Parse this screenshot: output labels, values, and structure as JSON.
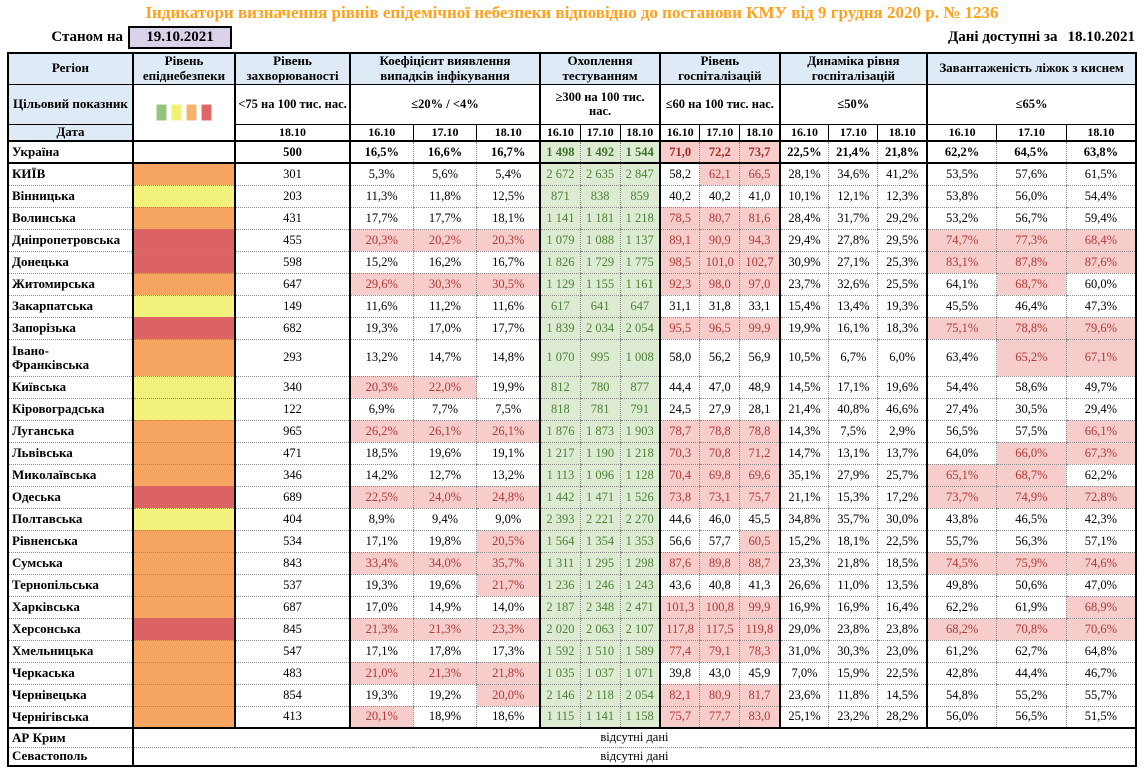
{
  "title": "Індикатори визначення рівнів епідемічної небезпеки відповідно до постанови КМУ від 9 грудня 2020 р. № 1236",
  "meta": {
    "as_of_label": "Станом на",
    "as_of_date": "19.10.2021",
    "available_label": "Дані доступні за",
    "available_date": "18.10.2021"
  },
  "colors": {
    "title_orange": "#FFA11C",
    "header_blue": "#DEEAF6",
    "date_box_lavender": "#D9D2E9",
    "test_green_bg": "#DCEBD2",
    "test_green_text": "#4F8038",
    "exceed_pink_bg": "#F6CDCB",
    "exceed_red_text": "#AF3A36"
  },
  "table": {
    "corner": {
      "region": "Регіон",
      "target": "Цільовий показник",
      "date": "Дата"
    },
    "legend_colors": [
      "#93C47D",
      "#F2F272",
      "#F6B26B",
      "#E06666"
    ],
    "risk_colors": {
      "orange": "#F5A55F",
      "yellow": "#F2F17B",
      "red": "#DC6363"
    },
    "no_data_text": "відсутні дані",
    "groups": [
      {
        "label": "Рівень епіднебезпеки"
      },
      {
        "label": "Рівень захворюваності",
        "target": "<75 на 100 тис. нас.",
        "dates": [
          "18.10"
        ]
      },
      {
        "label": "Коефіцієнт виявлення випадків інфікування",
        "target": "≤20% / <4%",
        "dates": [
          "16.10",
          "17.10",
          "18.10"
        ]
      },
      {
        "label": "Охоплення тестуванням",
        "target": "≥300 на 100 тис. нас.",
        "dates": [
          "16.10",
          "17.10",
          "18.10"
        ]
      },
      {
        "label": "Рівень госпіталізацій",
        "target": "≤60 на 100 тис. нас.",
        "dates": [
          "16.10",
          "17.10",
          "18.10"
        ]
      },
      {
        "label": "Динаміка рівня госпіталізацій",
        "target": "≤50%",
        "dates": [
          "16.10",
          "17.10",
          "18.10"
        ]
      },
      {
        "label": "Завантаженість ліжок з киснем",
        "target": "≤65%",
        "dates": [
          "16.10",
          "17.10",
          "18.10"
        ]
      }
    ],
    "rows": [
      {
        "region": "Україна",
        "risk": "none",
        "bold": true,
        "incidence": "500",
        "coef": [
          "16,5%",
          "16,6%",
          "16,7%"
        ],
        "test": [
          "1 498",
          "1 492",
          "1 544"
        ],
        "hosp": [
          "71,0",
          "72,2",
          "73,7"
        ],
        "dyn": [
          "22,5%",
          "21,4%",
          "21,8%"
        ],
        "bed": [
          "62,2%",
          "64,5%",
          "63,8%"
        ]
      },
      {
        "region": "КИЇВ",
        "risk": "orange",
        "incidence": "301",
        "coef": [
          "5,3%",
          "5,6%",
          "5,4%"
        ],
        "test": [
          "2 672",
          "2 635",
          "2 847"
        ],
        "hosp": [
          "58,2",
          "62,1",
          "66,5"
        ],
        "dyn": [
          "28,1%",
          "34,6%",
          "41,2%"
        ],
        "bed": [
          "53,5%",
          "57,6%",
          "61,5%"
        ]
      },
      {
        "region": "Вінницька",
        "risk": "yellow",
        "incidence": "203",
        "coef": [
          "11,3%",
          "11,8%",
          "12,5%"
        ],
        "test": [
          "871",
          "838",
          "859"
        ],
        "hosp": [
          "40,2",
          "40,2",
          "41,0"
        ],
        "dyn": [
          "10,1%",
          "12,1%",
          "12,3%"
        ],
        "bed": [
          "53,8%",
          "56,0%",
          "54,4%"
        ]
      },
      {
        "region": "Волинська",
        "risk": "orange",
        "incidence": "431",
        "coef": [
          "17,7%",
          "17,7%",
          "18,1%"
        ],
        "test": [
          "1 141",
          "1 181",
          "1 218"
        ],
        "hosp": [
          "78,5",
          "80,7",
          "81,6"
        ],
        "dyn": [
          "28,4%",
          "31,7%",
          "29,2%"
        ],
        "bed": [
          "53,2%",
          "56,7%",
          "59,4%"
        ]
      },
      {
        "region": "Дніпропетровська",
        "risk": "red",
        "incidence": "455",
        "coef": [
          "20,3%",
          "20,2%",
          "20,3%"
        ],
        "test": [
          "1 079",
          "1 088",
          "1 137"
        ],
        "hosp": [
          "89,1",
          "90,9",
          "94,3"
        ],
        "dyn": [
          "29,4%",
          "27,8%",
          "29,5%"
        ],
        "bed": [
          "74,7%",
          "77,3%",
          "68,4%"
        ]
      },
      {
        "region": "Донецька",
        "risk": "red",
        "incidence": "598",
        "coef": [
          "15,2%",
          "16,2%",
          "16,7%"
        ],
        "test": [
          "1 826",
          "1 729",
          "1 775"
        ],
        "hosp": [
          "98,5",
          "101,0",
          "102,7"
        ],
        "dyn": [
          "30,9%",
          "27,1%",
          "25,3%"
        ],
        "bed": [
          "83,1%",
          "87,8%",
          "87,6%"
        ]
      },
      {
        "region": "Житомирська",
        "risk": "orange",
        "incidence": "647",
        "coef": [
          "29,6%",
          "30,3%",
          "30,5%"
        ],
        "test": [
          "1 129",
          "1 155",
          "1 161"
        ],
        "hosp": [
          "92,3",
          "98,0",
          "97,0"
        ],
        "dyn": [
          "23,7%",
          "32,6%",
          "25,5%"
        ],
        "bed": [
          "64,1%",
          "68,7%",
          "60,0%"
        ]
      },
      {
        "region": "Закарпатська",
        "risk": "yellow",
        "incidence": "149",
        "coef": [
          "11,6%",
          "11,2%",
          "11,6%"
        ],
        "test": [
          "617",
          "641",
          "647"
        ],
        "hosp": [
          "31,1",
          "31,8",
          "33,1"
        ],
        "dyn": [
          "15,4%",
          "13,4%",
          "19,3%"
        ],
        "bed": [
          "45,5%",
          "46,4%",
          "47,3%"
        ]
      },
      {
        "region": "Запорізька",
        "risk": "red",
        "incidence": "682",
        "coef": [
          "19,3%",
          "17,0%",
          "17,7%"
        ],
        "test": [
          "1 839",
          "2 034",
          "2 054"
        ],
        "hosp": [
          "95,5",
          "96,5",
          "99,9"
        ],
        "dyn": [
          "19,9%",
          "16,1%",
          "18,3%"
        ],
        "bed": [
          "75,1%",
          "78,8%",
          "79,6%"
        ]
      },
      {
        "region": "Івано-Франківська",
        "risk": "orange",
        "tall": true,
        "incidence": "293",
        "coef": [
          "13,2%",
          "14,7%",
          "14,8%"
        ],
        "test": [
          "1 070",
          "995",
          "1 008"
        ],
        "hosp": [
          "58,0",
          "56,2",
          "56,9"
        ],
        "dyn": [
          "10,5%",
          "6,7%",
          "6,0%"
        ],
        "bed": [
          "63,4%",
          "65,2%",
          "67,1%"
        ]
      },
      {
        "region": "Київська",
        "risk": "yellow",
        "incidence": "340",
        "coef": [
          "20,3%",
          "22,0%",
          "19,9%"
        ],
        "test": [
          "812",
          "780",
          "877"
        ],
        "hosp": [
          "44,4",
          "47,0",
          "48,9"
        ],
        "dyn": [
          "14,5%",
          "17,1%",
          "19,6%"
        ],
        "bed": [
          "54,4%",
          "58,6%",
          "49,7%"
        ]
      },
      {
        "region": "Кіровоградська",
        "risk": "yellow",
        "incidence": "122",
        "coef": [
          "6,9%",
          "7,7%",
          "7,5%"
        ],
        "test": [
          "818",
          "781",
          "791"
        ],
        "hosp": [
          "24,5",
          "27,9",
          "28,1"
        ],
        "dyn": [
          "21,4%",
          "40,8%",
          "46,6%"
        ],
        "bed": [
          "27,4%",
          "30,5%",
          "29,4%"
        ]
      },
      {
        "region": "Луганська",
        "risk": "orange",
        "incidence": "965",
        "coef": [
          "26,2%",
          "26,1%",
          "26,1%"
        ],
        "test": [
          "1 876",
          "1 873",
          "1 903"
        ],
        "hosp": [
          "78,7",
          "78,8",
          "78,8"
        ],
        "dyn": [
          "14,3%",
          "7,5%",
          "2,9%"
        ],
        "bed": [
          "56,5%",
          "57,5%",
          "66,1%"
        ]
      },
      {
        "region": "Львівська",
        "risk": "orange",
        "incidence": "471",
        "coef": [
          "18,5%",
          "19,6%",
          "19,1%"
        ],
        "test": [
          "1 217",
          "1 190",
          "1 218"
        ],
        "hosp": [
          "70,3",
          "70,8",
          "71,2"
        ],
        "dyn": [
          "14,7%",
          "13,1%",
          "13,7%"
        ],
        "bed": [
          "64,0%",
          "66,0%",
          "67,3%"
        ]
      },
      {
        "region": "Миколаївська",
        "risk": "orange",
        "incidence": "346",
        "coef": [
          "14,2%",
          "12,7%",
          "13,2%"
        ],
        "test": [
          "1 113",
          "1 096",
          "1 128"
        ],
        "hosp": [
          "70,4",
          "69,8",
          "69,6"
        ],
        "dyn": [
          "35,1%",
          "27,9%",
          "25,7%"
        ],
        "bed": [
          "65,1%",
          "68,7%",
          "62,2%"
        ]
      },
      {
        "region": "Одеська",
        "risk": "red",
        "incidence": "689",
        "coef": [
          "22,5%",
          "24,0%",
          "24,8%"
        ],
        "test": [
          "1 442",
          "1 471",
          "1 526"
        ],
        "hosp": [
          "73,8",
          "73,1",
          "75,7"
        ],
        "dyn": [
          "21,1%",
          "15,3%",
          "17,2%"
        ],
        "bed": [
          "73,7%",
          "74,9%",
          "72,8%"
        ]
      },
      {
        "region": "Полтавська",
        "risk": "yellow",
        "incidence": "404",
        "coef": [
          "8,9%",
          "9,4%",
          "9,0%"
        ],
        "test": [
          "2 393",
          "2 221",
          "2 270"
        ],
        "hosp": [
          "44,6",
          "46,0",
          "45,5"
        ],
        "dyn": [
          "34,8%",
          "35,7%",
          "30,0%"
        ],
        "bed": [
          "43,8%",
          "46,5%",
          "42,3%"
        ]
      },
      {
        "region": "Рівненська",
        "risk": "orange",
        "incidence": "534",
        "coef": [
          "17,1%",
          "19,8%",
          "20,5%"
        ],
        "test": [
          "1 564",
          "1 354",
          "1 353"
        ],
        "hosp": [
          "56,6",
          "57,7",
          "60,5"
        ],
        "dyn": [
          "15,2%",
          "18,1%",
          "22,5%"
        ],
        "bed": [
          "55,7%",
          "56,3%",
          "57,1%"
        ]
      },
      {
        "region": "Сумська",
        "risk": "orange",
        "incidence": "843",
        "coef": [
          "33,4%",
          "34,0%",
          "35,7%"
        ],
        "test": [
          "1 311",
          "1 295",
          "1 298"
        ],
        "hosp": [
          "87,6",
          "89,8",
          "88,7"
        ],
        "dyn": [
          "23,3%",
          "21,8%",
          "18,5%"
        ],
        "bed": [
          "74,5%",
          "75,9%",
          "74,6%"
        ]
      },
      {
        "region": "Тернопільська",
        "risk": "orange",
        "incidence": "537",
        "coef": [
          "19,3%",
          "19,6%",
          "21,7%"
        ],
        "test": [
          "1 236",
          "1 246",
          "1 243"
        ],
        "hosp": [
          "43,6",
          "40,8",
          "41,3"
        ],
        "dyn": [
          "26,6%",
          "11,0%",
          "13,5%"
        ],
        "bed": [
          "49,8%",
          "50,6%",
          "47,0%"
        ]
      },
      {
        "region": "Харківська",
        "risk": "orange",
        "incidence": "687",
        "coef": [
          "17,0%",
          "14,9%",
          "14,0%"
        ],
        "test": [
          "2 187",
          "2 348",
          "2 471"
        ],
        "hosp": [
          "101,3",
          "100,8",
          "99,9"
        ],
        "dyn": [
          "16,9%",
          "16,9%",
          "16,4%"
        ],
        "bed": [
          "62,2%",
          "61,9%",
          "68,9%"
        ]
      },
      {
        "region": "Херсонська",
        "risk": "red",
        "incidence": "845",
        "coef": [
          "21,3%",
          "21,3%",
          "23,3%"
        ],
        "test": [
          "2 020",
          "2 063",
          "2 107"
        ],
        "hosp": [
          "117,8",
          "117,5",
          "119,8"
        ],
        "dyn": [
          "29,0%",
          "23,8%",
          "23,8%"
        ],
        "bed": [
          "68,2%",
          "70,8%",
          "70,6%"
        ]
      },
      {
        "region": "Хмельницька",
        "risk": "orange",
        "incidence": "547",
        "coef": [
          "17,1%",
          "17,8%",
          "17,3%"
        ],
        "test": [
          "1 592",
          "1 510",
          "1 589"
        ],
        "hosp": [
          "77,4",
          "79,1",
          "78,3"
        ],
        "dyn": [
          "31,0%",
          "30,3%",
          "23,0%"
        ],
        "bed": [
          "61,2%",
          "62,7%",
          "64,8%"
        ]
      },
      {
        "region": "Черкаська",
        "risk": "orange",
        "incidence": "483",
        "coef": [
          "21,0%",
          "21,3%",
          "21,8%"
        ],
        "test": [
          "1 035",
          "1 037",
          "1 071"
        ],
        "hosp": [
          "39,8",
          "43,0",
          "45,9"
        ],
        "dyn": [
          "7,0%",
          "15,9%",
          "22,5%"
        ],
        "bed": [
          "42,8%",
          "44,4%",
          "46,7%"
        ]
      },
      {
        "region": "Чернівецька",
        "risk": "orange",
        "incidence": "854",
        "coef": [
          "19,3%",
          "19,2%",
          "20,0%"
        ],
        "test": [
          "2 146",
          "2 118",
          "2 054"
        ],
        "hosp": [
          "82,1",
          "80,9",
          "81,7"
        ],
        "dyn": [
          "23,6%",
          "11,8%",
          "14,5%"
        ],
        "bed": [
          "54,8%",
          "55,2%",
          "55,7%"
        ]
      },
      {
        "region": "Чернігівська",
        "risk": "orange",
        "incidence": "413",
        "coef": [
          "20,1%",
          "18,9%",
          "18,6%"
        ],
        "test": [
          "1 115",
          "1 141",
          "1 158"
        ],
        "hosp": [
          "75,7",
          "77,7",
          "83,0"
        ],
        "dyn": [
          "25,1%",
          "23,2%",
          "28,2%"
        ],
        "bed": [
          "56,0%",
          "56,5%",
          "51,5%"
        ]
      },
      {
        "region": "АР Крим",
        "risk": "none",
        "no_data": true
      },
      {
        "region": "Севастополь",
        "risk": "none",
        "no_data": true
      }
    ]
  }
}
